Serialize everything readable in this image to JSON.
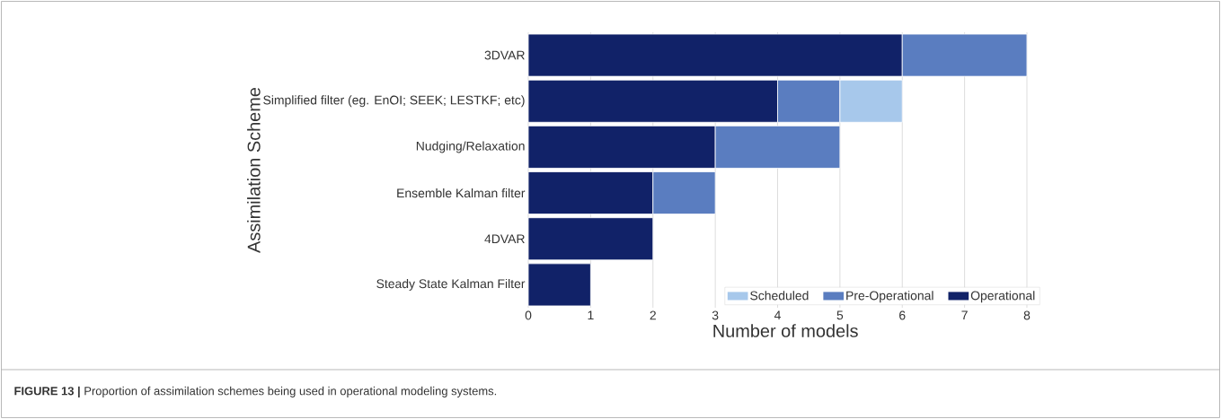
{
  "chart_data": {
    "type": "bar",
    "orientation": "horizontal",
    "stacked": true,
    "xlabel": "Number of models",
    "ylabel": "Assimilation Scheme",
    "categories": [
      "3DVAR",
      "Simplified filter (eg. EnOI; SEEK; LESTKF; etc)",
      "Nudging/Relaxation",
      "Ensemble Kalman filter",
      "4DVAR",
      "Steady State Kalman Filter"
    ],
    "series": [
      {
        "name": "Operational",
        "color": "#112268",
        "values": [
          6,
          4,
          3,
          2,
          2,
          1
        ]
      },
      {
        "name": "Pre-Operational",
        "color": "#5a7dc0",
        "values": [
          2,
          1,
          2,
          1,
          null,
          null
        ]
      },
      {
        "name": "Scheduled",
        "color": "#a7c8eb",
        "values": [
          null,
          1,
          null,
          null,
          null,
          null
        ]
      }
    ],
    "xlim": [
      0,
      8.25
    ],
    "xticks": [
      0,
      1,
      2,
      3,
      4,
      5,
      6,
      7,
      8
    ],
    "grid": "x",
    "legend": "bottom right",
    "annotations": [
      "**FIGURE 13 |** Proportion of assimilation schemes being used in operational modeling systems."
    ]
  }
}
